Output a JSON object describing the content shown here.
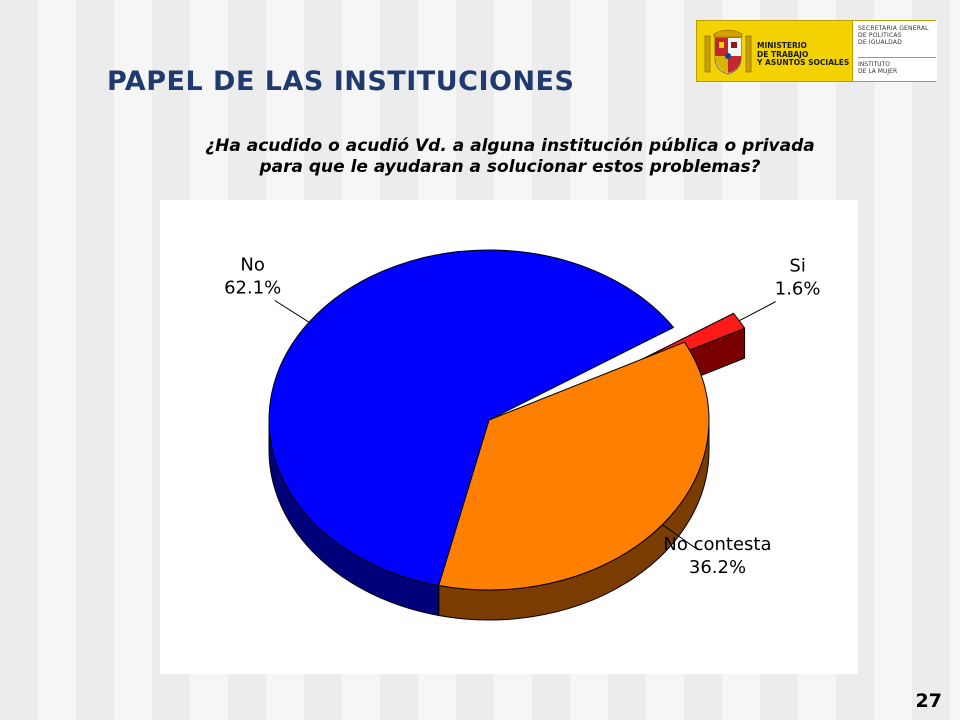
{
  "slide": {
    "title": "PAPEL DE LAS INSTITUCIONES",
    "question_line1": "¿Ha acudido o acudió Vd. a alguna institución pública o privada",
    "question_line2": "para que le ayudaran a solucionar estos problemas?",
    "page_number": "27"
  },
  "logo": {
    "ministry": [
      "MINISTERIO",
      "DE TRABAJO",
      "Y ASUNTOS SOCIALES"
    ],
    "secretaria": [
      "SECRETARIA GENERAL",
      "DE POLITICAS",
      "DE IGUALDAD"
    ],
    "instituto": [
      "INSTITUTO",
      "DE LA MUJER"
    ]
  },
  "chart_data": {
    "type": "pie",
    "style": "3d-exploded",
    "slices": [
      {
        "label": "Si",
        "value": 1.6,
        "value_label": "1.6%",
        "color": "#ff1a1a",
        "side_color": "#7a0000",
        "exploded": true
      },
      {
        "label": "No contesta",
        "value": 36.2,
        "value_label": "36.2%",
        "color": "#ff8000",
        "side_color": "#7a3c00",
        "exploded": false
      },
      {
        "label": "No",
        "value": 62.1,
        "value_label": "62.1%",
        "color": "#0000ff",
        "side_color": "#00007a",
        "exploded": false
      }
    ]
  }
}
